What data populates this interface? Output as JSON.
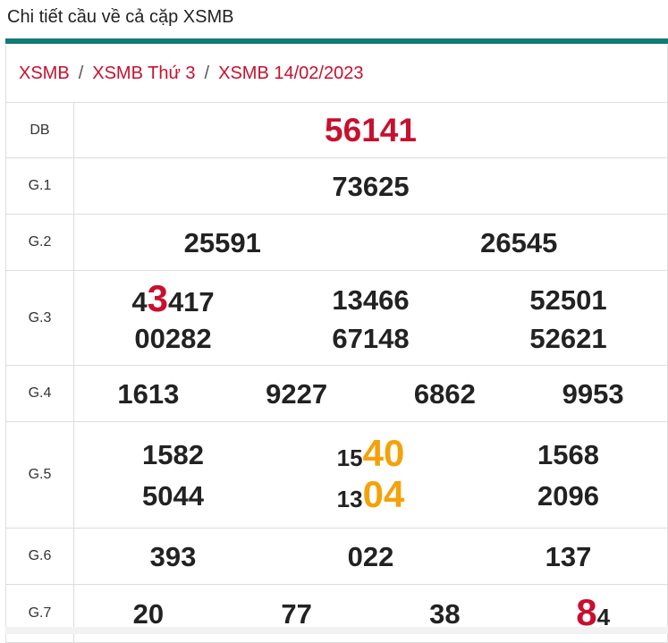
{
  "page_title": "Chi tiết cầu về cả cặp XSMB",
  "breadcrumb": {
    "items": [
      "XSMB",
      "XSMB Thứ 3",
      "XSMB 14/02/2023"
    ],
    "separator": "/"
  },
  "colors": {
    "accent_red": "#c8102e",
    "accent_orange": "#f5a10a",
    "header_rule": "#117a7a",
    "text": "#222222"
  },
  "prizes": {
    "db": {
      "label": "DB",
      "numbers": [
        "56141"
      ]
    },
    "g1": {
      "label": "G.1",
      "numbers": [
        "73625"
      ]
    },
    "g2": {
      "label": "G.2",
      "numbers": [
        "25591",
        "26545"
      ]
    },
    "g3": {
      "label": "G.3",
      "numbers": [
        "43417",
        "13466",
        "52501",
        "00282",
        "67148",
        "52621"
      ]
    },
    "g4": {
      "label": "G.4",
      "numbers": [
        "1613",
        "9227",
        "6862",
        "9953"
      ]
    },
    "g5": {
      "label": "G.5",
      "numbers": [
        "1582",
        "1540",
        "1568",
        "5044",
        "1304",
        "2096"
      ]
    },
    "g6": {
      "label": "G.6",
      "numbers": [
        "393",
        "022",
        "137"
      ]
    },
    "g7": {
      "label": "G.7",
      "numbers": [
        "20",
        "77",
        "38",
        "84"
      ]
    }
  },
  "highlights": {
    "g3_first": {
      "before": "4",
      "highlight": "3",
      "after": "417"
    },
    "g5_second": {
      "before": "15",
      "highlight": "40"
    },
    "g5_fifth": {
      "before": "13",
      "highlight": "04"
    },
    "g7_fourth": {
      "highlight": "8",
      "after": "4"
    }
  }
}
